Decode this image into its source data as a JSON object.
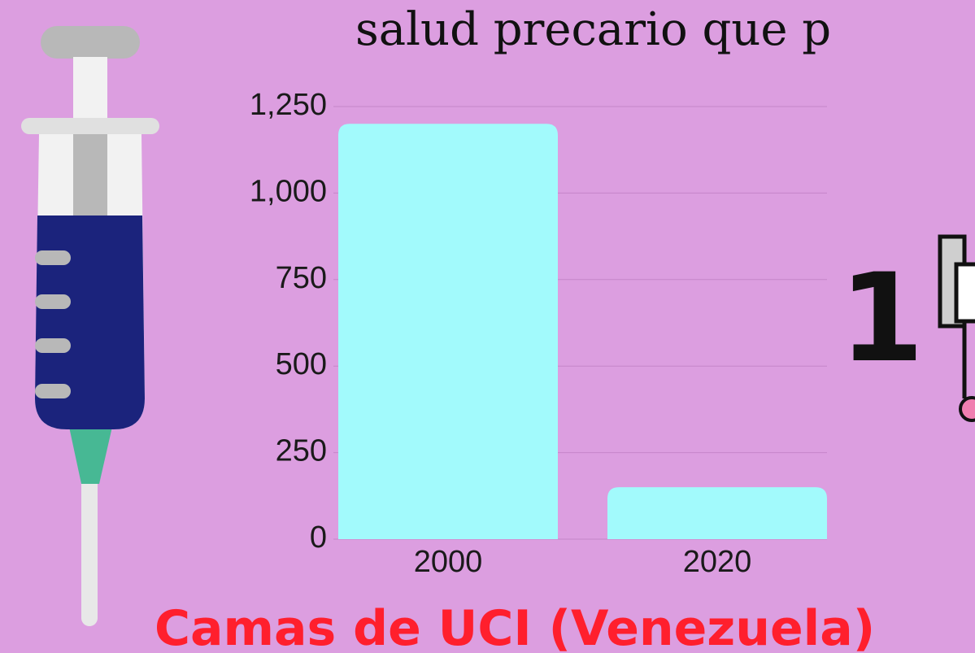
{
  "heading": "salud precario que p",
  "stat": "1",
  "chart_data": {
    "type": "bar",
    "title": "Camas de UCI (Venezuela)",
    "categories": [
      "2000",
      "2020"
    ],
    "values": [
      1200,
      150
    ],
    "color": "#a2fafc",
    "ylim": [
      0,
      1250
    ],
    "yticks": [
      0,
      250,
      500,
      750,
      {
        "value": 1000,
        "label": "1,000"
      },
      {
        "value": 1250,
        "label": "1,250"
      }
    ],
    "grid": true
  }
}
